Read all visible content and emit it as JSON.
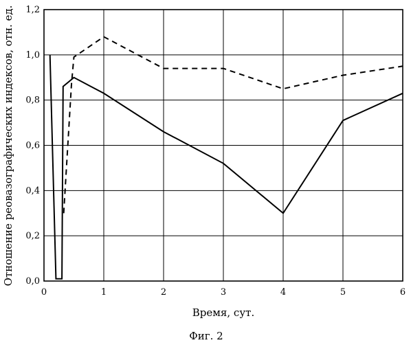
{
  "chart_data": {
    "type": "line",
    "xlabel": "Время, сут.",
    "ylabel": "Отношение реовазографических индексов, отн. ед.",
    "caption": "Фиг. 2",
    "xlim": [
      0,
      6
    ],
    "ylim": [
      0,
      1.2
    ],
    "x_ticks": [
      0,
      1,
      2,
      3,
      4,
      5,
      6
    ],
    "x_tick_labels": [
      "0",
      "1",
      "2",
      "3",
      "4",
      "5",
      "6"
    ],
    "y_ticks": [
      0,
      0.2,
      0.4,
      0.6,
      0.8,
      1.0,
      1.2
    ],
    "y_tick_labels": [
      "0,0",
      "0,2",
      "0,4",
      "0,6",
      "0,8",
      "1,0",
      "1,2"
    ],
    "grid": true,
    "series": [
      {
        "style": "solid",
        "color": "#000000",
        "x": [
          0.1,
          0.2,
          0.3,
          0.32,
          0.5,
          1,
          2,
          3,
          4,
          5,
          6
        ],
        "y": [
          1.0,
          0.01,
          0.01,
          0.86,
          0.9,
          0.83,
          0.66,
          0.52,
          0.3,
          0.71,
          0.83
        ]
      },
      {
        "style": "dashed",
        "color": "#000000",
        "x": [
          0.33,
          0.46,
          0.5,
          1,
          2,
          3,
          4,
          5,
          6
        ],
        "y": [
          0.3,
          0.87,
          0.99,
          1.08,
          0.94,
          0.94,
          0.85,
          0.91,
          0.95
        ]
      }
    ]
  }
}
